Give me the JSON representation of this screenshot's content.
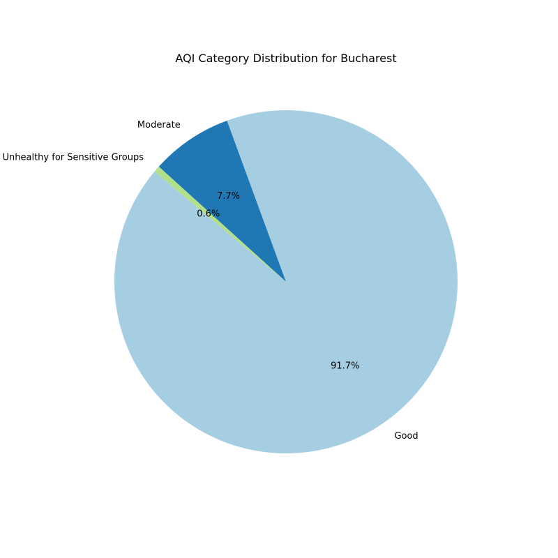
{
  "chart_data": {
    "type": "pie",
    "title": "AQI Category Distribution for Bucharest",
    "slices": [
      {
        "label": "Good",
        "value": 91.7,
        "pct_label": "91.7%",
        "color": "#a6cee3"
      },
      {
        "label": "Moderate",
        "value": 7.7,
        "pct_label": "7.7%",
        "color": "#1f78b4"
      },
      {
        "label": "Unhealthy for Sensitive Groups",
        "value": 0.6,
        "pct_label": "0.6%",
        "color": "#b2df8a"
      }
    ],
    "start_angle_deg": 140,
    "direction": "counterclockwise",
    "legend": "none"
  }
}
